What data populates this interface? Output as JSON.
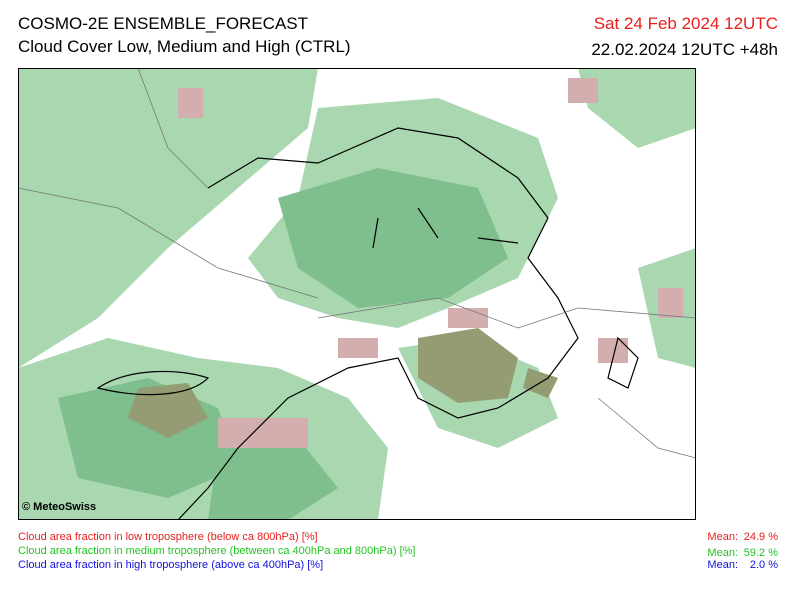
{
  "header": {
    "title": "COSMO-2E ENSEMBLE_FORECAST",
    "subtitle": "Cloud Cover Low, Medium and High (CTRL)",
    "valid_time": "Sat 24 Feb 2024 12UTC",
    "run_time": "22.02.2024 12UTC +48h"
  },
  "map": {
    "copyright": "© MeteoSwiss"
  },
  "legend": {
    "items": [
      {
        "label": "Cloud area fraction in low troposphere (below ca 800hPa) [%]",
        "mean_label": "Mean:",
        "mean": "24.9 %"
      },
      {
        "label": "Cloud area fraction in medium troposphere (between ca 400hPa and 800hPa) [%]",
        "mean_label": "Mean:",
        "mean": "59.2 %"
      },
      {
        "label": "Cloud area fraction in high troposphere (above ca 400hPa) [%]",
        "mean_label": "Mean:",
        "mean": "2.0 %"
      }
    ]
  }
}
